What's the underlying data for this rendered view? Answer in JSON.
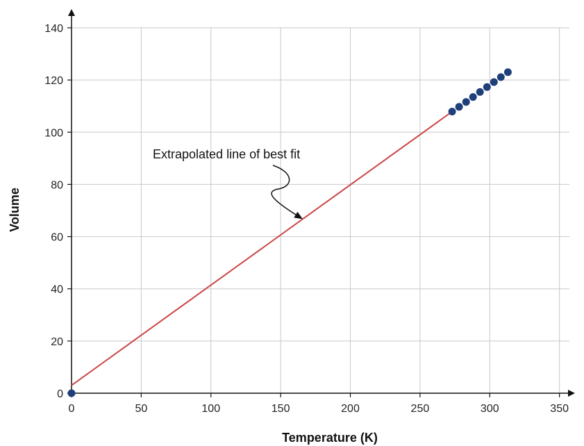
{
  "chart_data": {
    "type": "scatter",
    "title": "",
    "xlabel": "Temperature (K)",
    "ylabel": "Volume",
    "xlim": [
      0,
      350
    ],
    "ylim": [
      0,
      140
    ],
    "xticks": [
      0,
      50,
      100,
      150,
      200,
      250,
      300,
      350
    ],
    "yticks": [
      0,
      20,
      40,
      60,
      80,
      100,
      120,
      140
    ],
    "grid": true,
    "series": [
      {
        "kind": "scatter",
        "color": "#1f3f7a",
        "points": [
          {
            "x": 273,
            "y": 107.9
          },
          {
            "x": 278,
            "y": 109.7
          },
          {
            "x": 283,
            "y": 111.6
          },
          {
            "x": 288,
            "y": 113.5
          },
          {
            "x": 293,
            "y": 115.4
          },
          {
            "x": 298,
            "y": 117.3
          },
          {
            "x": 303,
            "y": 119.2
          },
          {
            "x": 308,
            "y": 121.1
          },
          {
            "x": 313,
            "y": 123.0
          }
        ]
      },
      {
        "kind": "point",
        "color": "#1f3f7a",
        "points": [
          {
            "x": 0,
            "y": 0
          }
        ]
      },
      {
        "kind": "line",
        "color": "#cc4444",
        "points": [
          {
            "x": 0,
            "y": 3
          },
          {
            "x": 273,
            "y": 107.9
          }
        ]
      }
    ],
    "annotations": [
      {
        "text": "Extrapolated line of best fit",
        "target": {
          "x": 165,
          "y": 67
        }
      }
    ]
  }
}
